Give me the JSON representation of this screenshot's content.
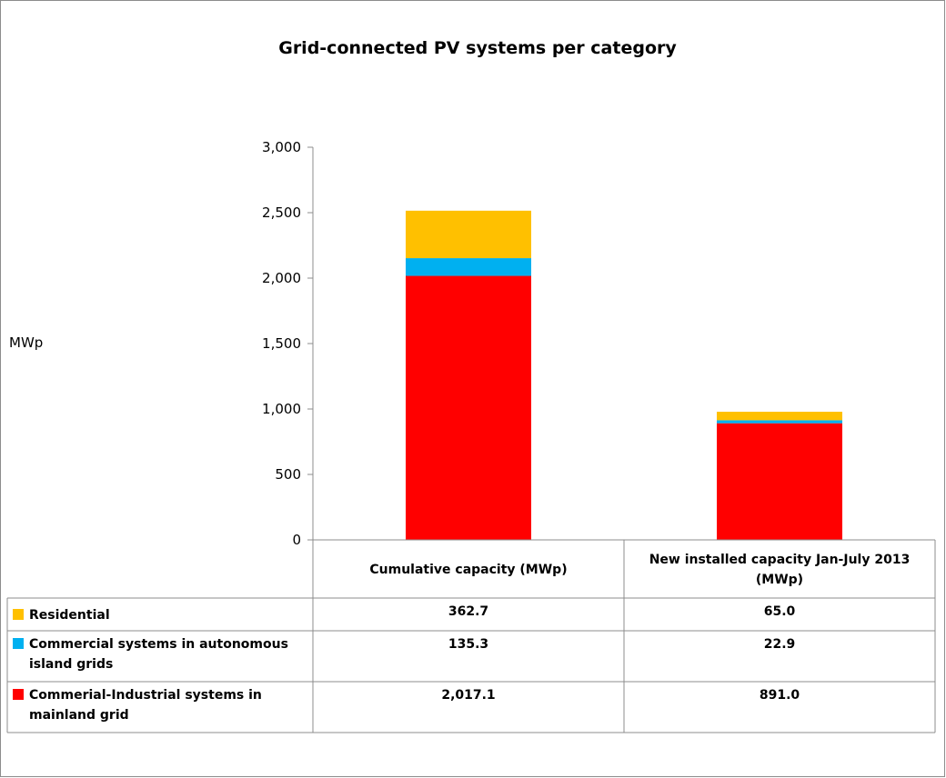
{
  "chart_data": {
    "type": "bar",
    "stacked": true,
    "title": "Grid-connected PV systems per category",
    "ylabel": "MWp",
    "ylim": [
      0,
      3000
    ],
    "yticks": [
      "0",
      "500",
      "1,000",
      "1,500",
      "2,000",
      "2,500",
      "3,000"
    ],
    "ytick_values": [
      0,
      500,
      1000,
      1500,
      2000,
      2500,
      3000
    ],
    "categories": [
      "Cumulative capacity (MWp)",
      "New installed capacity Jan-July 2013 (MWp)"
    ],
    "category_lines": [
      [
        "Cumulative capacity (MWp)"
      ],
      [
        "New installed capacity Jan-July 2013",
        "(MWp)"
      ]
    ],
    "series": [
      {
        "name": "Commerial-Industrial systems in mainland grid",
        "label_lines": [
          "Commerial-Industrial systems in",
          "mainland grid"
        ],
        "color": "#ff0000",
        "values": [
          2017.1,
          891.0
        ],
        "display": [
          "2,017.1",
          "891.0"
        ]
      },
      {
        "name": "Commercial systems in autonomous island grids",
        "label_lines": [
          "Commercial systems in autonomous",
          "island grids"
        ],
        "color": "#00b0f0",
        "values": [
          135.3,
          22.9
        ],
        "display": [
          "135.3",
          "22.9"
        ]
      },
      {
        "name": "Residential",
        "label_lines": [
          "Residential"
        ],
        "color": "#ffc000",
        "values": [
          362.7,
          65.0
        ],
        "display": [
          "362.7",
          "65.0"
        ]
      }
    ],
    "table_order": [
      2,
      1,
      0
    ],
    "legend_placement": "data table",
    "grid": false
  }
}
